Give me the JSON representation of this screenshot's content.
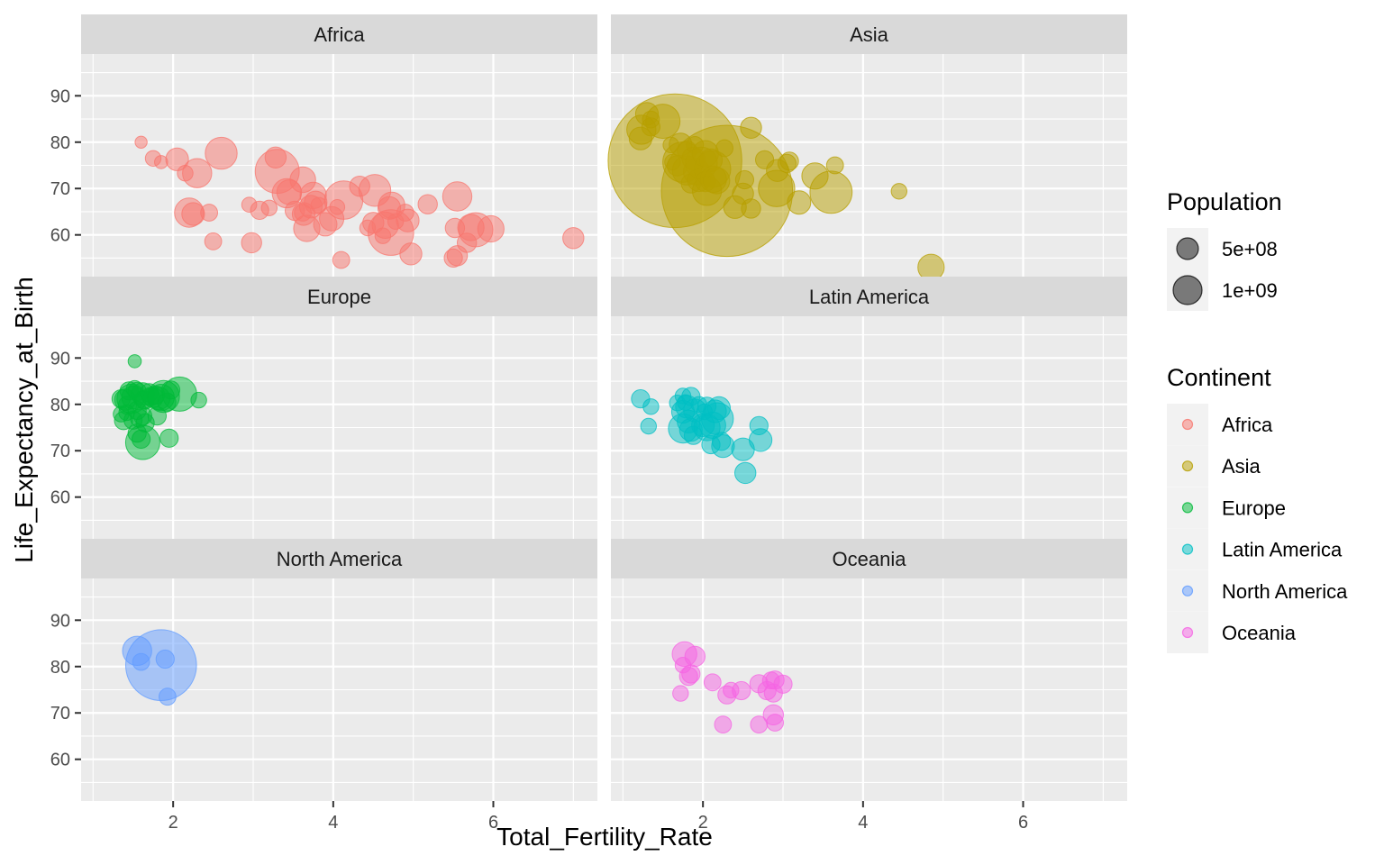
{
  "chart_data": {
    "type": "scatter",
    "facet_by": "Continent",
    "xlabel": "Total_Fertility_Rate",
    "ylabel": "Life_Expectancy_at_Birth",
    "xlim": [
      0.85,
      7.3
    ],
    "ylim": [
      51,
      99
    ],
    "x_ticks": [
      2,
      4,
      6
    ],
    "y_ticks": [
      60,
      70,
      80,
      90
    ],
    "grid": true,
    "legend_position": "right",
    "size_legend": {
      "title": "Population",
      "entries": [
        {
          "label": "5e+08",
          "value": 500000000
        },
        {
          "label": "1e+09",
          "value": 1000000000
        }
      ]
    },
    "color_legend": {
      "title": "Continent",
      "entries": [
        {
          "label": "Africa",
          "color": "#F8766D"
        },
        {
          "label": "Asia",
          "color": "#B79F00"
        },
        {
          "label": "Europe",
          "color": "#00BA38"
        },
        {
          "label": "Latin America",
          "color": "#00BFC4"
        },
        {
          "label": "North America",
          "color": "#619CFF"
        },
        {
          "label": "Oceania",
          "color": "#F564E3"
        }
      ]
    },
    "panels": [
      {
        "name": "Africa",
        "color": "#F8766D",
        "points": [
          [
            1.6,
            80.0,
            2
          ],
          [
            1.75,
            76.5,
            6
          ],
          [
            1.85,
            75.7,
            3
          ],
          [
            2.05,
            76.3,
            20
          ],
          [
            2.15,
            73.3,
            6
          ],
          [
            2.3,
            73.3,
            40
          ],
          [
            2.2,
            64.8,
            40
          ],
          [
            2.25,
            64.5,
            20
          ],
          [
            2.45,
            64.8,
            8
          ],
          [
            2.5,
            58.6,
            8
          ],
          [
            2.6,
            77.6,
            50
          ],
          [
            2.95,
            66.5,
            5
          ],
          [
            2.98,
            58.3,
            14
          ],
          [
            3.08,
            65.3,
            10
          ],
          [
            3.2,
            65.8,
            6
          ],
          [
            3.28,
            76.7,
            16
          ],
          [
            3.3,
            73.7,
            110
          ],
          [
            3.42,
            69.0,
            40
          ],
          [
            3.45,
            69.2,
            25
          ],
          [
            3.52,
            65.2,
            12
          ],
          [
            3.63,
            64.5,
            20
          ],
          [
            3.62,
            64.8,
            8
          ],
          [
            3.62,
            71.9,
            28
          ],
          [
            3.67,
            61.4,
            30
          ],
          [
            3.72,
            66.1,
            20
          ],
          [
            3.75,
            68.5,
            30
          ],
          [
            3.78,
            67.0,
            20
          ],
          [
            3.82,
            66.4,
            6
          ],
          [
            3.9,
            62.3,
            22
          ],
          [
            3.98,
            63.5,
            24
          ],
          [
            4.05,
            66.0,
            5
          ],
          [
            4.1,
            54.6,
            8
          ],
          [
            4.13,
            67.5,
            80
          ],
          [
            4.33,
            70.5,
            14
          ],
          [
            4.43,
            61.5,
            6
          ],
          [
            4.5,
            62.6,
            16
          ],
          [
            4.52,
            69.6,
            50
          ],
          [
            4.62,
            59.8,
            6
          ],
          [
            4.65,
            62.1,
            30
          ],
          [
            4.7,
            65.8,
            20
          ],
          [
            4.72,
            60.5,
            120
          ],
          [
            4.73,
            66.4,
            30
          ],
          [
            4.78,
            62.9,
            6
          ],
          [
            4.9,
            64.8,
            8
          ],
          [
            4.93,
            63.1,
            20
          ],
          [
            4.97,
            55.9,
            18
          ],
          [
            5.18,
            66.6,
            12
          ],
          [
            5.52,
            61.5,
            12
          ],
          [
            5.5,
            55.0,
            10
          ],
          [
            5.55,
            55.5,
            14
          ],
          [
            5.55,
            68.3,
            40
          ],
          [
            5.67,
            58.3,
            12
          ],
          [
            5.72,
            61.6,
            30
          ],
          [
            5.78,
            61.1,
            60
          ],
          [
            5.97,
            61.3,
            30
          ],
          [
            7.0,
            59.3,
            16
          ]
        ]
      },
      {
        "name": "Asia",
        "color": "#B79F00",
        "points": [
          [
            1.22,
            80.8,
            20
          ],
          [
            1.23,
            82.7,
            40
          ],
          [
            1.3,
            86.1,
            20
          ],
          [
            1.35,
            84.9,
            8
          ],
          [
            1.35,
            83.3,
            10
          ],
          [
            1.5,
            84.5,
            60
          ],
          [
            1.6,
            79.4,
            6
          ],
          [
            1.62,
            75.7,
            6
          ],
          [
            1.65,
            76.0,
            1300
          ],
          [
            1.68,
            74.9,
            14
          ],
          [
            1.72,
            79.5,
            20
          ],
          [
            1.75,
            75.7,
            90
          ],
          [
            1.8,
            78.2,
            12
          ],
          [
            1.8,
            73.9,
            40
          ],
          [
            1.85,
            71.1,
            12
          ],
          [
            1.88,
            76.5,
            20
          ],
          [
            1.9,
            79.4,
            8
          ],
          [
            1.92,
            73.6,
            30
          ],
          [
            1.95,
            71.8,
            20
          ],
          [
            1.98,
            75.5,
            50
          ],
          [
            2.03,
            77.5,
            30
          ],
          [
            2.03,
            71.5,
            14
          ],
          [
            2.05,
            69.5,
            40
          ],
          [
            2.1,
            76.1,
            20
          ],
          [
            2.12,
            74.2,
            70
          ],
          [
            2.13,
            72.0,
            30
          ],
          [
            2.17,
            71.7,
            30
          ],
          [
            2.27,
            78.7,
            8
          ],
          [
            2.3,
            69.5,
            1250
          ],
          [
            2.4,
            66.0,
            20
          ],
          [
            2.5,
            68.9,
            16
          ],
          [
            2.52,
            71.9,
            10
          ],
          [
            2.6,
            83.1,
            16
          ],
          [
            2.6,
            65.7,
            12
          ],
          [
            2.77,
            76.2,
            10
          ],
          [
            2.92,
            70.0,
            70
          ],
          [
            2.93,
            73.9,
            18
          ],
          [
            3.05,
            75.4,
            10
          ],
          [
            3.08,
            75.9,
            10
          ],
          [
            3.2,
            67.0,
            22
          ],
          [
            3.4,
            72.7,
            30
          ],
          [
            3.6,
            69.2,
            100
          ],
          [
            3.65,
            75.0,
            8
          ],
          [
            4.45,
            69.4,
            6
          ],
          [
            4.85,
            53.0,
            30
          ]
        ]
      },
      {
        "name": "Europe",
        "color": "#00BA38",
        "points": [
          [
            1.52,
            89.3,
            3
          ],
          [
            1.35,
            81.2,
            10
          ],
          [
            1.35,
            77.9,
            6
          ],
          [
            1.38,
            76.5,
            10
          ],
          [
            1.4,
            81.0,
            16
          ],
          [
            1.42,
            78.2,
            6
          ],
          [
            1.43,
            79.8,
            10
          ],
          [
            1.45,
            82.9,
            10
          ],
          [
            1.48,
            81.2,
            40
          ],
          [
            1.5,
            81.5,
            20
          ],
          [
            1.5,
            76.6,
            10
          ],
          [
            1.52,
            83.3,
            8
          ],
          [
            1.55,
            82.8,
            10
          ],
          [
            1.55,
            78.7,
            10
          ],
          [
            1.55,
            73.8,
            10
          ],
          [
            1.58,
            77.0,
            10
          ],
          [
            1.6,
            72.5,
            10
          ],
          [
            1.62,
            71.8,
            60
          ],
          [
            1.62,
            82.2,
            20
          ],
          [
            1.63,
            81.0,
            10
          ],
          [
            1.65,
            80.9,
            10
          ],
          [
            1.65,
            76.0,
            10
          ],
          [
            1.62,
            77.5,
            10
          ],
          [
            1.7,
            82.5,
            10
          ],
          [
            1.72,
            81.7,
            10
          ],
          [
            1.75,
            81.5,
            14
          ],
          [
            1.78,
            82.0,
            10
          ],
          [
            1.8,
            77.5,
            10
          ],
          [
            1.82,
            81.3,
            20
          ],
          [
            1.85,
            81.5,
            30
          ],
          [
            1.88,
            81.7,
            50
          ],
          [
            1.92,
            80.5,
            10
          ],
          [
            1.95,
            72.7,
            10
          ],
          [
            1.97,
            83.1,
            10
          ],
          [
            2.08,
            82.2,
            60
          ],
          [
            2.32,
            80.9,
            6
          ]
        ]
      },
      {
        "name": "Latin America",
        "color": "#00BFC4",
        "points": [
          [
            1.22,
            81.2,
            10
          ],
          [
            1.32,
            75.3,
            6
          ],
          [
            1.35,
            79.5,
            6
          ],
          [
            1.68,
            80.3,
            6
          ],
          [
            1.75,
            81.8,
            6
          ],
          [
            1.75,
            78.4,
            20
          ],
          [
            1.75,
            74.8,
            40
          ],
          [
            1.78,
            80.4,
            6
          ],
          [
            1.8,
            79.5,
            20
          ],
          [
            1.82,
            76.3,
            20
          ],
          [
            1.85,
            81.7,
            10
          ],
          [
            1.85,
            74.5,
            20
          ],
          [
            1.88,
            73.3,
            10
          ],
          [
            1.9,
            78.7,
            20
          ],
          [
            1.95,
            80.0,
            6
          ],
          [
            2.0,
            75.5,
            20
          ],
          [
            2.02,
            78.4,
            6
          ],
          [
            2.05,
            79.6,
            10
          ],
          [
            2.05,
            75.0,
            30
          ],
          [
            2.1,
            71.3,
            10
          ],
          [
            2.12,
            75.5,
            30
          ],
          [
            2.15,
            78.5,
            20
          ],
          [
            2.18,
            76.9,
            50
          ],
          [
            2.2,
            79.2,
            20
          ],
          [
            2.23,
            72.0,
            10
          ],
          [
            2.25,
            71.0,
            20
          ],
          [
            2.5,
            70.3,
            20
          ],
          [
            2.53,
            65.2,
            16
          ],
          [
            2.7,
            75.4,
            10
          ],
          [
            2.72,
            72.3,
            20
          ]
        ]
      },
      {
        "name": "North America",
        "color": "#619CFF",
        "points": [
          [
            1.55,
            83.4,
            40
          ],
          [
            1.6,
            81.0,
            8
          ],
          [
            1.85,
            80.3,
            330
          ],
          [
            1.9,
            81.6,
            10
          ],
          [
            1.93,
            73.5,
            8
          ]
        ]
      },
      {
        "name": "Oceania",
        "color": "#F564E3",
        "points": [
          [
            1.72,
            74.2,
            6
          ],
          [
            1.75,
            80.3,
            6
          ],
          [
            1.77,
            82.7,
            25
          ],
          [
            1.82,
            77.9,
            10
          ],
          [
            1.85,
            78.4,
            10
          ],
          [
            1.9,
            82.2,
            14
          ],
          [
            2.12,
            76.6,
            8
          ],
          [
            2.25,
            67.5,
            8
          ],
          [
            2.3,
            73.9,
            10
          ],
          [
            2.35,
            74.9,
            6
          ],
          [
            2.48,
            74.8,
            10
          ],
          [
            2.7,
            76.3,
            10
          ],
          [
            2.7,
            67.5,
            8
          ],
          [
            2.8,
            74.8,
            10
          ],
          [
            2.85,
            77.0,
            8
          ],
          [
            2.88,
            74.3,
            10
          ],
          [
            2.88,
            69.6,
            14
          ],
          [
            2.9,
            77.1,
            10
          ],
          [
            2.9,
            67.9,
            8
          ],
          [
            3.0,
            76.2,
            10
          ]
        ]
      }
    ]
  }
}
